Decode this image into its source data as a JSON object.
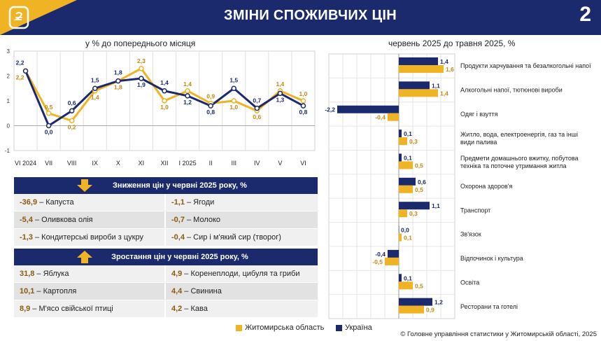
{
  "header": {
    "title": "ЗМІНИ СПОЖИВЧИХ ЦІН",
    "page_number": "2",
    "accent_color": "#f0b323",
    "brand_color": "#1a2a6c"
  },
  "colors": {
    "zhytomyr": "#f0b323",
    "ukraine": "#1a2a6c"
  },
  "legend": {
    "zhytomyr": "Житомирська область",
    "ukraine": "Україна"
  },
  "footer": "© Головне управління статистики у Житомирській області, 2025",
  "decrease": {
    "title": "Зниження цін у червні 2025 року, %",
    "items": [
      {
        "value": "-36,9",
        "label": "Капуста"
      },
      {
        "value": "-1,1",
        "label": "Ягоди"
      },
      {
        "value": "-5,4",
        "label": "Оливкова олія"
      },
      {
        "value": "-0,7",
        "label": "Молоко"
      },
      {
        "value": "-1,3",
        "label": "Кондитерські вироби з цукру"
      },
      {
        "value": "-0,4",
        "label": "Сир і м'який сир (творог)"
      }
    ]
  },
  "increase": {
    "title": "Зростання цін у червні 2025 року, %",
    "items": [
      {
        "value": "31,8",
        "label": "Яблука"
      },
      {
        "value": "4,9",
        "label": "Коренеплоди, цибуля та гриби"
      },
      {
        "value": "10,1",
        "label": "Картопля"
      },
      {
        "value": "4,4",
        "label": "Свинина"
      },
      {
        "value": "8,9",
        "label": "М'ясо свійської птиці"
      },
      {
        "value": "4,2",
        "label": "Кава"
      }
    ]
  },
  "chart_data": [
    {
      "type": "line",
      "title": "у % до попереднього місяця",
      "categories": [
        "VI 2024",
        "VII",
        "VIII",
        "IX",
        "X",
        "XI",
        "XII",
        "I 2025",
        "II",
        "III",
        "IV",
        "V",
        "VI"
      ],
      "ylim": [
        -1,
        3
      ],
      "yticks": [
        "-1",
        "0",
        "1",
        "2",
        "3"
      ],
      "series": [
        {
          "name": "Житомирська область",
          "values": [
            2.2,
            0.5,
            0.2,
            1.4,
            1.8,
            2.3,
            1.0,
            1.4,
            0.9,
            1.0,
            0.6,
            1.4,
            1.0
          ],
          "labels": [
            "2,2",
            "0,5",
            "0,2",
            "1,4",
            "1,8",
            "2,3",
            "1,0",
            "1,4",
            "0,9",
            "1,0",
            "0,6",
            "1,4",
            "1,0"
          ]
        },
        {
          "name": "Україна",
          "values": [
            2.2,
            0.0,
            0.6,
            1.5,
            1.8,
            1.9,
            1.4,
            1.2,
            0.8,
            1.5,
            0.7,
            1.3,
            0.8
          ],
          "labels": [
            "2,2",
            "0,0",
            "0,6",
            "1,5",
            "1,8",
            "1,9",
            "1,4",
            "1,2",
            "0,8",
            "1,5",
            "0,7",
            "1,3",
            "0,8"
          ]
        }
      ]
    },
    {
      "type": "bar",
      "title": "червень 2025 до травня 2025, %",
      "categories": [
        "Продукти харчування та безалкогольні напої",
        "Алкогольні напої, тютюнові вироби",
        "Одяг і взуття",
        "Житло, вода, електроенергія, газ та інші види палива",
        "Предмети домашнього вжитку, побутова техніка та поточне утримання житла",
        "Охорона здоров'я",
        "Транспорт",
        "Зв'язок",
        "Відпочинок і культура",
        "Освіта",
        "Ресторани та готелі"
      ],
      "category_lines": [
        [
          "Продукти харчування та безалкогольні напої"
        ],
        [
          "Алкогольні напої, тютюнові вироби"
        ],
        [
          "Одяг і взуття"
        ],
        [
          "Житло, вода, електроенергія, газ та інші",
          "види палива"
        ],
        [
          "Предмети домашнього вжитку, побутова",
          "техніка та поточне утримання житла"
        ],
        [
          "Охорона здоров'я"
        ],
        [
          "Транспорт"
        ],
        [
          "Зв'язок"
        ],
        [
          "Відпочинок і культура"
        ],
        [
          "Освіта"
        ],
        [
          "Ресторани та готелі"
        ]
      ],
      "xlim": [
        -2.5,
        2.0
      ],
      "series": [
        {
          "name": "Україна",
          "values": [
            1.4,
            1.1,
            -2.2,
            0.1,
            0.1,
            0.6,
            1.1,
            0.0,
            -0.4,
            0.1,
            1.2
          ],
          "labels": [
            "1,4",
            "1,1",
            "-2,2",
            "0,1",
            "0,1",
            "0,6",
            "1,1",
            "0,0",
            "-0,4",
            "0,1",
            "1,2"
          ]
        },
        {
          "name": "Житомирська область",
          "values": [
            1.6,
            1.4,
            -0.4,
            0.3,
            0.5,
            0.5,
            0.3,
            0.1,
            -0.5,
            0.5,
            0.9
          ],
          "labels": [
            "1,6",
            "1,4",
            "-0,4",
            "0,3",
            "0,5",
            "0,5",
            "0,3",
            "0,1",
            "-0,5",
            "0,5",
            "0,9"
          ]
        }
      ]
    }
  ]
}
